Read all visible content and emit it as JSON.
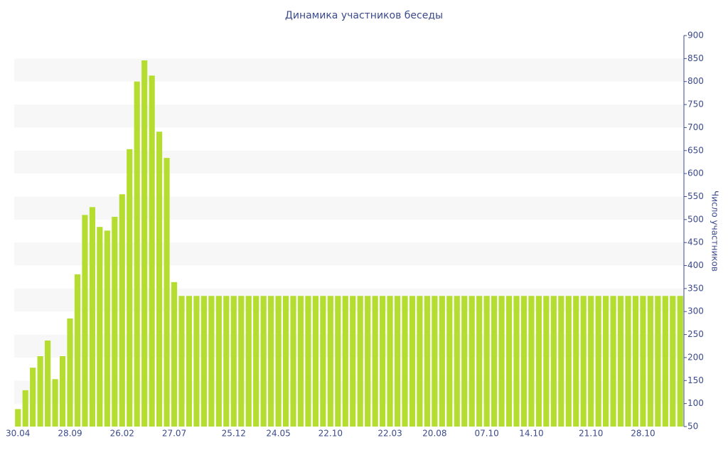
{
  "chart_data": {
    "type": "bar",
    "title": "Динамика участников беседы",
    "y_label": "Число участников",
    "categories": [
      "30.04",
      null,
      null,
      null,
      null,
      null,
      null,
      "28.09",
      null,
      null,
      null,
      null,
      null,
      null,
      "26.02",
      null,
      null,
      null,
      null,
      null,
      null,
      "27.07",
      null,
      null,
      null,
      null,
      null,
      null,
      null,
      "25.12",
      null,
      null,
      null,
      null,
      null,
      "24.05",
      null,
      null,
      null,
      null,
      null,
      null,
      "22.10",
      null,
      null,
      null,
      null,
      null,
      null,
      null,
      "22.03",
      null,
      null,
      null,
      null,
      null,
      "20.08",
      null,
      null,
      null,
      null,
      null,
      null,
      "07.10",
      null,
      null,
      null,
      null,
      null,
      "14.10",
      null,
      null,
      null,
      null,
      null,
      null,
      null,
      "21.10",
      null,
      null,
      null,
      null,
      null,
      null,
      "28.10",
      null,
      null,
      null,
      null,
      null
    ],
    "values": [
      88,
      129,
      178,
      203,
      237,
      153,
      203,
      285,
      381,
      510,
      527,
      484,
      476,
      506,
      555,
      653,
      800,
      846,
      813,
      691,
      634,
      364,
      334,
      334,
      334,
      334,
      334,
      334,
      334,
      334,
      334,
      334,
      334,
      334,
      334,
      334,
      334,
      334,
      334,
      334,
      334,
      334,
      334,
      334,
      334,
      334,
      334,
      334,
      334,
      334,
      334,
      334,
      334,
      334,
      334,
      334,
      334,
      334,
      334,
      334,
      334,
      334,
      334,
      334,
      334,
      334,
      334,
      334,
      334,
      334,
      334,
      334,
      334,
      334,
      334,
      334,
      334,
      334,
      334,
      334,
      334,
      334,
      334,
      334,
      334,
      334,
      334,
      334,
      334,
      334
    ],
    "color": "#b5dd2f",
    "ylim": [
      50,
      900
    ],
    "yticks": [
      50,
      100,
      150,
      200,
      250,
      300,
      350,
      400,
      450,
      500,
      550,
      600,
      650,
      700,
      750,
      800,
      850,
      900
    ],
    "y_axis_side": "right",
    "grid": true
  }
}
